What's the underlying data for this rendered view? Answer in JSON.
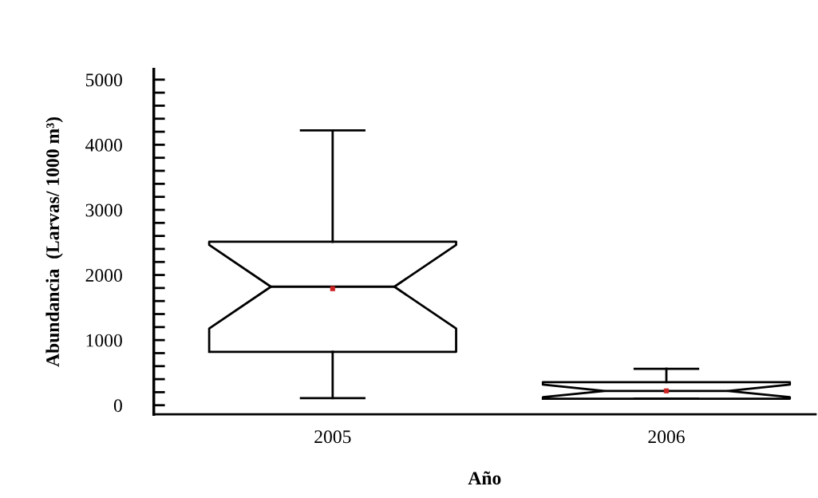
{
  "chart_data": {
    "type": "box",
    "xlabel": "Año",
    "ylabel": "Abundancia  (Larvas/ 1000 m³)",
    "categories": [
      "2005",
      "2006"
    ],
    "boxes": [
      {
        "low": 110,
        "q1": 820,
        "median": 1820,
        "q3": 2510,
        "high": 4220,
        "mean": 1790
      },
      {
        "low": 100,
        "q1": 100,
        "median": 220,
        "q3": 355,
        "high": 560,
        "mean": 220
      }
    ],
    "ylim": [
      -140,
      5160
    ],
    "yticks": [
      0,
      {
        "value": 200,
        "label": null
      },
      {
        "value": 400,
        "label": null
      },
      {
        "value": 600,
        "label": null
      },
      {
        "value": 800,
        "label": null
      },
      1000,
      {
        "value": 1200,
        "label": null
      },
      {
        "value": 1400,
        "label": null
      },
      {
        "value": 1600,
        "label": null
      },
      {
        "value": 1800,
        "label": null
      },
      2000,
      {
        "value": 2200,
        "label": null
      },
      {
        "value": 2400,
        "label": null
      },
      {
        "value": 2600,
        "label": null
      },
      {
        "value": 2800,
        "label": null
      },
      3000,
      {
        "value": 3200,
        "label": null
      },
      {
        "value": 3400,
        "label": null
      },
      {
        "value": 3600,
        "label": null
      },
      {
        "value": 3800,
        "label": null
      },
      4000,
      {
        "value": 4200,
        "label": null
      },
      {
        "value": 4400,
        "label": null
      },
      {
        "value": 4600,
        "label": null
      },
      {
        "value": 4800,
        "label": null
      },
      5000
    ],
    "grid": false
  }
}
